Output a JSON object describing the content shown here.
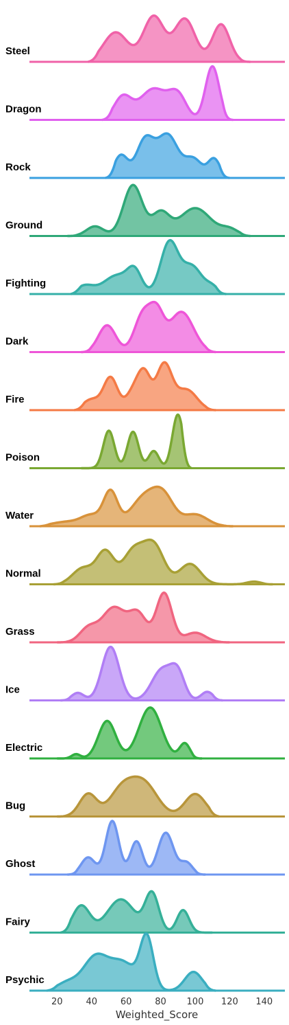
{
  "chart_data": {
    "type": "ridgeline",
    "xlabel": "Weighted_Score",
    "xlim": [
      4,
      152
    ],
    "x_ticks": [
      20,
      40,
      60,
      80,
      100,
      120,
      140
    ],
    "x_tick_labels": [
      "20",
      "40",
      "60",
      "80",
      "100",
      "120",
      "140"
    ],
    "series": [
      {
        "name": "Steel",
        "color": "#f062a8",
        "range": [
          38,
          132
        ],
        "peaks": [
          [
            54,
            7,
            0.55
          ],
          [
            76,
            6,
            0.85
          ],
          [
            94,
            6,
            0.8
          ],
          [
            115,
            5,
            0.7
          ]
        ]
      },
      {
        "name": "Dragon",
        "color": "#e060ee",
        "range": [
          46,
          122
        ],
        "peaks": [
          [
            58,
            5,
            0.42
          ],
          [
            76,
            8,
            0.58
          ],
          [
            90,
            5,
            0.42
          ],
          [
            110,
            4,
            1.0
          ]
        ]
      },
      {
        "name": "Rock",
        "color": "#3aa0e0",
        "range": [
          48,
          120
        ],
        "peaks": [
          [
            57,
            4,
            0.42
          ],
          [
            71,
            5,
            0.7
          ],
          [
            84,
            6,
            0.8
          ],
          [
            99,
            5,
            0.35
          ],
          [
            111,
            3.5,
            0.35
          ]
        ]
      },
      {
        "name": "Ground",
        "color": "#2fa878",
        "range": [
          26,
          132
        ],
        "peaks": [
          [
            42,
            5,
            0.18
          ],
          [
            64,
            5.5,
            0.95
          ],
          [
            80,
            5,
            0.42
          ],
          [
            100,
            9,
            0.52
          ],
          [
            120,
            5,
            0.12
          ]
        ]
      },
      {
        "name": "Fighting",
        "color": "#35b0a8",
        "range": [
          28,
          118
        ],
        "peaks": [
          [
            36,
            5,
            0.15
          ],
          [
            55,
            8,
            0.35
          ],
          [
            65,
            4,
            0.35
          ],
          [
            85,
            5,
            0.95
          ],
          [
            98,
            6,
            0.52
          ],
          [
            110,
            3.5,
            0.12
          ]
        ]
      },
      {
        "name": "Dark",
        "color": "#ee55d8",
        "range": [
          34,
          112
        ],
        "peaks": [
          [
            49,
            5,
            0.5
          ],
          [
            70,
            5,
            0.72
          ],
          [
            78,
            4,
            0.6
          ],
          [
            92,
            7,
            0.75
          ]
        ]
      },
      {
        "name": "Fire",
        "color": "#f47a45",
        "range": [
          30,
          112
        ],
        "peaks": [
          [
            40,
            5,
            0.2
          ],
          [
            51,
            4,
            0.6
          ],
          [
            66,
            5,
            0.45
          ],
          [
            71,
            3.5,
            0.45
          ],
          [
            82,
            4.5,
            0.85
          ],
          [
            95,
            6,
            0.38
          ]
        ]
      },
      {
        "name": "Poison",
        "color": "#7aa832",
        "range": [
          34,
          98
        ],
        "peaks": [
          [
            50,
            3.2,
            0.7
          ],
          [
            64,
            3.2,
            0.68
          ],
          [
            76,
            3,
            0.32
          ],
          [
            90,
            3.2,
            1.0
          ]
        ]
      },
      {
        "name": "Water",
        "color": "#d8923a",
        "range": [
          10,
          122
        ],
        "peaks": [
          [
            25,
            8,
            0.08
          ],
          [
            40,
            6,
            0.2
          ],
          [
            51,
            4,
            0.62
          ],
          [
            71,
            8,
            0.55
          ],
          [
            82,
            6,
            0.45
          ],
          [
            100,
            7,
            0.22
          ]
        ]
      },
      {
        "name": "Normal",
        "color": "#a8a035",
        "range": [
          18,
          145
        ],
        "peaks": [
          [
            35,
            6,
            0.3
          ],
          [
            48,
            5,
            0.6
          ],
          [
            64,
            6,
            0.6
          ],
          [
            76,
            6,
            0.72
          ],
          [
            97,
            6,
            0.38
          ],
          [
            134,
            4,
            0.05
          ]
        ]
      },
      {
        "name": "Grass",
        "color": "#f06580",
        "range": [
          20,
          120
        ],
        "peaks": [
          [
            38,
            5,
            0.25
          ],
          [
            53,
            7,
            0.65
          ],
          [
            67,
            5,
            0.5
          ],
          [
            82,
            4.5,
            0.92
          ],
          [
            100,
            6,
            0.18
          ]
        ]
      },
      {
        "name": "Ice",
        "color": "#b07ef5",
        "range": [
          22,
          116
        ],
        "peaks": [
          [
            32,
            3.5,
            0.14
          ],
          [
            51,
            5,
            1.0
          ],
          [
            81,
            6,
            0.58
          ],
          [
            90,
            4,
            0.45
          ],
          [
            107,
            3.5,
            0.16
          ]
        ]
      },
      {
        "name": "Electric",
        "color": "#30b040",
        "range": [
          20,
          104
        ],
        "peaks": [
          [
            31,
            2.5,
            0.08
          ],
          [
            49,
            5,
            0.7
          ],
          [
            74,
            6.5,
            0.95
          ],
          [
            94,
            3,
            0.28
          ]
        ]
      },
      {
        "name": "Bug",
        "color": "#b8953a",
        "range": [
          20,
          114
        ],
        "peaks": [
          [
            38,
            5,
            0.42
          ],
          [
            57,
            7,
            0.45
          ],
          [
            70,
            8,
            0.62
          ],
          [
            100,
            6,
            0.42
          ]
        ]
      },
      {
        "name": "Ghost",
        "color": "#6e96f0",
        "range": [
          26,
          106
        ],
        "peaks": [
          [
            38,
            4,
            0.32
          ],
          [
            52,
            3.8,
            1.0
          ],
          [
            66,
            3.5,
            0.62
          ],
          [
            83,
            4.5,
            0.78
          ],
          [
            95,
            3.5,
            0.22
          ]
        ]
      },
      {
        "name": "Fairy",
        "color": "#35b098",
        "range": [
          22,
          110
        ],
        "peaks": [
          [
            34,
            5,
            0.5
          ],
          [
            57,
            8,
            0.62
          ],
          [
            75,
            4,
            0.72
          ],
          [
            93,
            3.5,
            0.42
          ]
        ]
      },
      {
        "name": "Psychic",
        "color": "#3aaec0",
        "range": [
          14,
          112
        ],
        "peaks": [
          [
            26,
            6,
            0.15
          ],
          [
            42,
            7,
            0.6
          ],
          [
            58,
            8,
            0.52
          ],
          [
            72,
            3.8,
            0.95
          ],
          [
            99,
            5,
            0.35
          ]
        ]
      }
    ]
  }
}
